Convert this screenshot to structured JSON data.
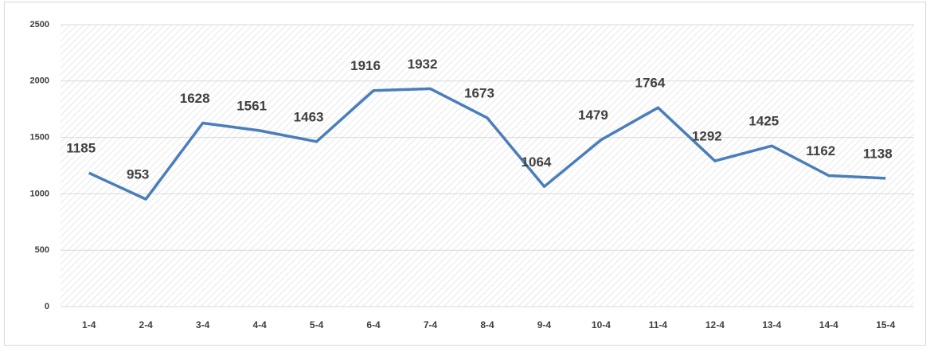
{
  "chart_data": {
    "type": "line",
    "categories": [
      "1-4",
      "2-4",
      "3-4",
      "4-4",
      "5-4",
      "6-4",
      "7-4",
      "8-4",
      "9-4",
      "10-4",
      "11-4",
      "12-4",
      "13-4",
      "14-4",
      "15-4"
    ],
    "values": [
      1185,
      953,
      1628,
      1561,
      1463,
      1916,
      1932,
      1673,
      1064,
      1479,
      1764,
      1292,
      1425,
      1162,
      1138
    ],
    "color": "#4a7ebb",
    "ylim": [
      0,
      2500
    ],
    "yticks": [
      0,
      500,
      1000,
      1500,
      2000,
      2500
    ],
    "grid": true
  }
}
